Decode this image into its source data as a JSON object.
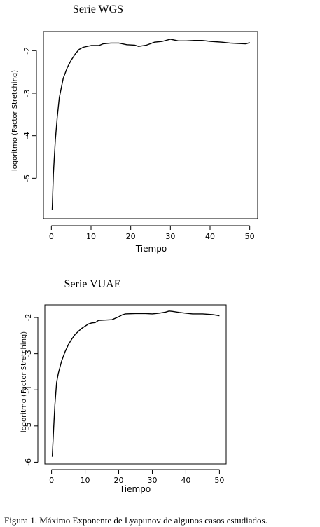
{
  "figure": {
    "caption": "Figura 1.  Máximo Exponente de Lyapunov de algunos casos estudiados."
  },
  "chart_data": [
    {
      "type": "line",
      "title": "Serie WGS",
      "xlabel": "Tiempo",
      "ylabel": "logoritmo (Factor  Stretching)",
      "xlim": [
        -2,
        52
      ],
      "ylim": [
        -5.95,
        -1.55
      ],
      "xticks": [
        "0",
        "10",
        "20",
        "30",
        "40",
        "50"
      ],
      "yticks": [
        "-5",
        "-4",
        "-3",
        "-2"
      ],
      "grid": false,
      "series": [
        {
          "x": [
            0.2,
            0.5,
            1,
            1.5,
            2,
            3,
            4,
            5,
            6,
            7,
            8,
            10,
            12,
            13,
            15,
            17,
            19,
            21,
            22,
            24,
            26,
            28,
            30,
            32,
            34,
            36,
            38,
            40,
            43,
            45,
            47,
            49,
            50
          ],
          "y": [
            -5.75,
            -4.9,
            -4.1,
            -3.55,
            -3.1,
            -2.65,
            -2.4,
            -2.22,
            -2.08,
            -1.97,
            -1.92,
            -1.88,
            -1.88,
            -1.84,
            -1.82,
            -1.82,
            -1.86,
            -1.87,
            -1.9,
            -1.87,
            -1.8,
            -1.78,
            -1.73,
            -1.77,
            -1.77,
            -1.76,
            -1.76,
            -1.78,
            -1.8,
            -1.82,
            -1.83,
            -1.84,
            -1.81
          ]
        }
      ]
    },
    {
      "type": "line",
      "title": "Serie VUAE",
      "xlabel": "Tiempo",
      "ylabel": "logoritmo (Factor Stretching)",
      "xlim": [
        -2,
        52
      ],
      "ylim": [
        -6.05,
        -1.65
      ],
      "xticks": [
        "0",
        "10",
        "20",
        "30",
        "40",
        "50"
      ],
      "yticks": [
        "-6",
        "-5",
        "-4",
        "-3",
        "-2"
      ],
      "grid": false,
      "series": [
        {
          "x": [
            0.2,
            0.6,
            1,
            1.5,
            2,
            3,
            4,
            5,
            6,
            7,
            8,
            9,
            10,
            11,
            12,
            13,
            14,
            16,
            18,
            20,
            21,
            22,
            25,
            28,
            30,
            32,
            34,
            35,
            36,
            38,
            40,
            42,
            45,
            48,
            50
          ],
          "y": [
            -5.85,
            -5.1,
            -4.4,
            -3.8,
            -3.55,
            -3.2,
            -2.95,
            -2.75,
            -2.6,
            -2.47,
            -2.38,
            -2.3,
            -2.24,
            -2.18,
            -2.15,
            -2.14,
            -2.08,
            -2.07,
            -2.06,
            -1.98,
            -1.93,
            -1.9,
            -1.89,
            -1.89,
            -1.9,
            -1.88,
            -1.85,
            -1.82,
            -1.83,
            -1.86,
            -1.88,
            -1.9,
            -1.9,
            -1.92,
            -1.95
          ]
        }
      ]
    }
  ]
}
